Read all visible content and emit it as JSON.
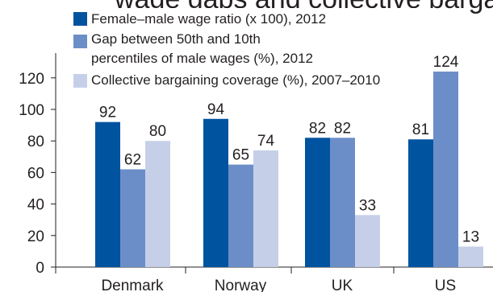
{
  "title_fragment": "wage gaps and collective bargaining",
  "chart_data": {
    "type": "bar",
    "title": "",
    "xlabel": "",
    "ylabel": "",
    "categories": [
      "Denmark",
      "Norway",
      "UK",
      "US"
    ],
    "ylim": [
      0,
      130
    ],
    "yticks": [
      0,
      20,
      40,
      60,
      80,
      100,
      120
    ],
    "grid": false,
    "legend_position": "top",
    "series": [
      {
        "name": "Female–male wage ratio (x 100), 2012",
        "color": "#00539f",
        "values": [
          92,
          94,
          82,
          81
        ]
      },
      {
        "name": "Gap between 50th and 10th percentiles of male wages (%), 2012",
        "color": "#6c8ec8",
        "values": [
          62,
          65,
          82,
          124
        ]
      },
      {
        "name": "Collective bargaining coverage (%), 2007–2010",
        "color": "#c5d0e8",
        "values": [
          80,
          74,
          33,
          13
        ]
      }
    ]
  },
  "legend_lines": [
    [
      "Female–male wage ratio (x 100), 2012"
    ],
    [
      "Gap between 50th and 10th",
      "percentiles of male wages (%), 2012"
    ],
    [
      "Collective bargaining coverage (%), 2007–2010"
    ]
  ]
}
